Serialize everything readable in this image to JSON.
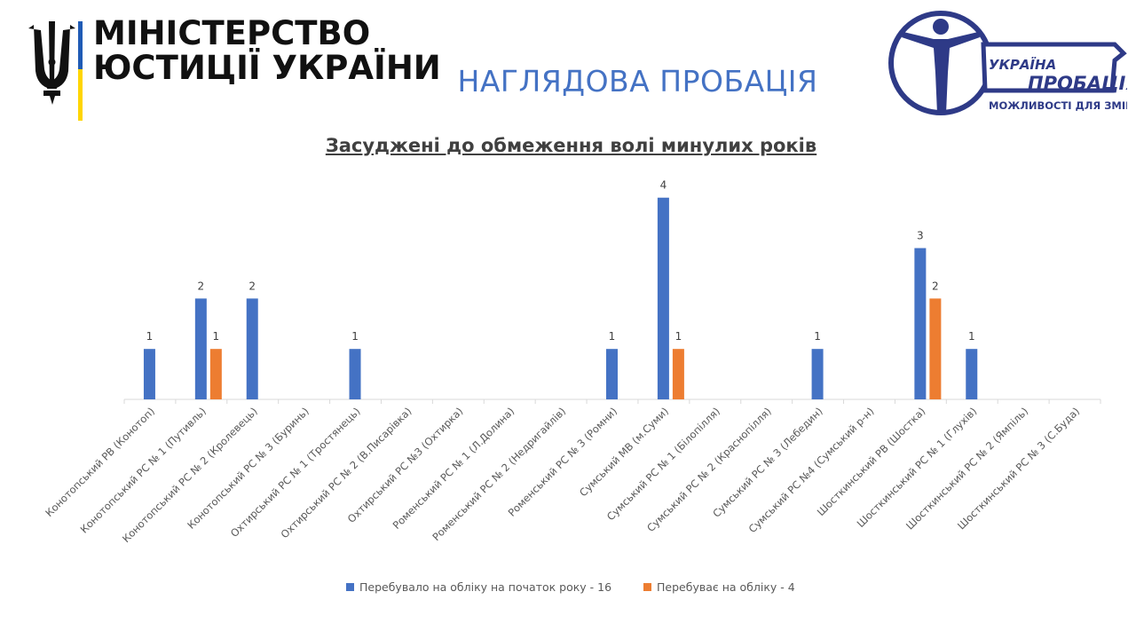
{
  "header": {
    "ministry_line_1": "МІНІСТЕРСТВО",
    "ministry_line_2": "ЮСТИЦІЇ УКРАЇНИ",
    "title": "НАГЛЯДОВА ПРОБАЦІЯ",
    "probation_logo": {
      "word_1": "УКРАЇНА",
      "word_2": "ПРОБАЦІЯ",
      "tagline": "МОЖЛИВОСТІ ДЛЯ ЗМІН"
    }
  },
  "colors": {
    "series_1": "#4472c4",
    "series_2": "#ed7d31",
    "title_blue": "#4472c4",
    "logo_navy": "#2e3a87",
    "flag_blue": "#1f5bb5",
    "flag_yellow": "#ffd500"
  },
  "chart_data": {
    "type": "bar",
    "title": "Засуджені до обмеження волі минулих років",
    "legend_position": "bottom",
    "grid": false,
    "ylim": [
      0,
      4.4
    ],
    "categories": [
      "Конотопський РВ (Конотоп)",
      "Конотопський РС № 1 (Путивль)",
      "Конотопський РС № 2 (Кролевець)",
      "Конотопський РС № 3 (Буринь)",
      "Охтирський РС № 1 (Тростянець)",
      "Охтирський РС № 2 (В.Писарівка)",
      "Охтирський РС №3 (Охтирка)",
      "Роменський РС № 1 (Л.Долина)",
      "Роменський РС № 2 (Недригайлів)",
      "Роменський РС № 3 (Ромни)",
      "Сумський МВ (м.Суми)",
      "Сумський РС № 1 (Білопілля)",
      "Сумський РС № 2 (Краснопілля)",
      "Сумський РС № 3 (Лебедин)",
      "Сумський РС №4 (Сумський р-н)",
      "Шосткинський РВ (Шостка)",
      "Шосткинський РС № 1 (Глухів)",
      "Шосткинський РС № 2 (Ямпіль)",
      "Шосткинський РС № 3 (С.Буда)"
    ],
    "series": [
      {
        "name": "Перебувало на обліку на початок року - 16",
        "values": [
          1,
          2,
          2,
          null,
          1,
          null,
          null,
          null,
          null,
          1,
          4,
          null,
          null,
          1,
          null,
          3,
          1,
          null,
          null
        ]
      },
      {
        "name": "Перебуває на обліку - 4",
        "values": [
          null,
          1,
          null,
          null,
          null,
          null,
          null,
          null,
          null,
          null,
          1,
          null,
          null,
          null,
          null,
          2,
          null,
          null,
          null
        ]
      }
    ]
  }
}
